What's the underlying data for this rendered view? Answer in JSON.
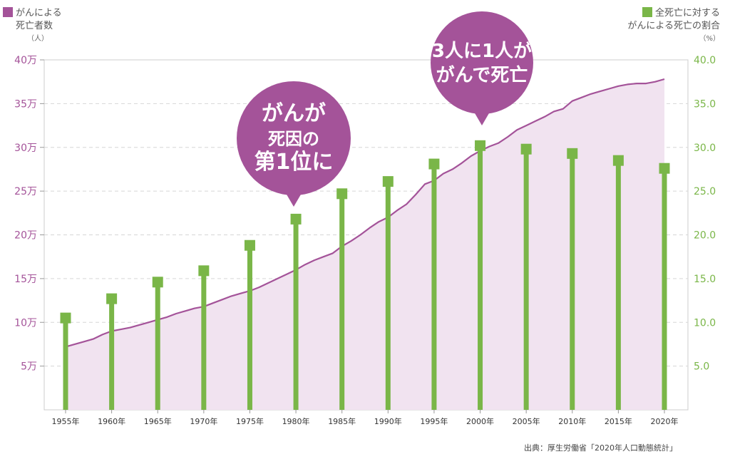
{
  "legend": {
    "left_line1": "がんによる",
    "left_line2": "死亡者数",
    "left_unit": "（人）",
    "left_color": "#a45399",
    "right_line1": "全死亡に対する",
    "right_line2": "がんによる死亡の割合",
    "right_unit": "（%）",
    "right_color": "#7ab648"
  },
  "callouts": [
    {
      "lines": [
        "がんが",
        "死因の",
        "第1位に"
      ],
      "year": 1981
    },
    {
      "lines": [
        "3人に1人が",
        "がんで死亡"
      ],
      "year": 2000
    }
  ],
  "source": "出典：厚生労働省「2020年人口動態統計」",
  "chart_data": {
    "type": "area+bar",
    "left_axis": {
      "ticks": [
        "5万",
        "10万",
        "15万",
        "20万",
        "25万",
        "30万",
        "35万",
        "40万"
      ],
      "ylim": [
        0,
        400000
      ]
    },
    "right_axis": {
      "ticks": [
        "5.0",
        "10.0",
        "15.0",
        "20.0",
        "25.0",
        "30.0",
        "35.0",
        "40.0"
      ],
      "ylim": [
        0,
        40
      ]
    },
    "x_labels": [
      "1955年",
      "1960年",
      "1965年",
      "1970年",
      "1975年",
      "1980年",
      "1985年",
      "1990年",
      "1995年",
      "2000年",
      "2005年",
      "2010年",
      "2015年",
      "2020年"
    ],
    "grid": true,
    "area_series": {
      "name": "がんによる死亡者数",
      "color": "#a45399",
      "fill": "#f1e3f0",
      "x": [
        1955,
        1956,
        1957,
        1958,
        1959,
        1960,
        1961,
        1962,
        1963,
        1964,
        1965,
        1966,
        1967,
        1968,
        1969,
        1970,
        1971,
        1972,
        1973,
        1974,
        1975,
        1976,
        1977,
        1978,
        1979,
        1980,
        1981,
        1982,
        1983,
        1984,
        1985,
        1986,
        1987,
        1988,
        1989,
        1990,
        1991,
        1992,
        1993,
        1994,
        1995,
        1996,
        1997,
        1998,
        1999,
        2000,
        2001,
        2002,
        2003,
        2004,
        2005,
        2006,
        2007,
        2008,
        2009,
        2010,
        2011,
        2012,
        2013,
        2014,
        2015,
        2016,
        2017,
        2018,
        2019,
        2020
      ],
      "y": [
        72000,
        75000,
        78000,
        81000,
        86000,
        90000,
        92000,
        94000,
        97000,
        100000,
        103000,
        106000,
        110000,
        113000,
        116000,
        118000,
        122000,
        126000,
        130000,
        133000,
        136000,
        140000,
        145000,
        150000,
        155000,
        160000,
        166000,
        171000,
        175000,
        179000,
        187000,
        193000,
        200000,
        208000,
        215000,
        220000,
        228000,
        235000,
        246000,
        258000,
        262000,
        270000,
        275000,
        282000,
        290000,
        296000,
        301000,
        305000,
        312000,
        320000,
        325000,
        330000,
        335000,
        341000,
        344000,
        353000,
        357000,
        361000,
        364000,
        367000,
        370000,
        372000,
        373000,
        373000,
        375000,
        378000
      ]
    },
    "bar_series": {
      "name": "全死亡に対するがんによる死亡の割合",
      "color": "#7ab648",
      "x": [
        1955,
        1960,
        1965,
        1970,
        1975,
        1980,
        1985,
        1990,
        1995,
        2000,
        2005,
        2010,
        2015,
        2020
      ],
      "y": [
        10.5,
        12.7,
        14.6,
        15.9,
        18.8,
        21.8,
        24.7,
        26.1,
        28.1,
        30.2,
        29.8,
        29.3,
        28.5,
        27.6
      ]
    }
  }
}
